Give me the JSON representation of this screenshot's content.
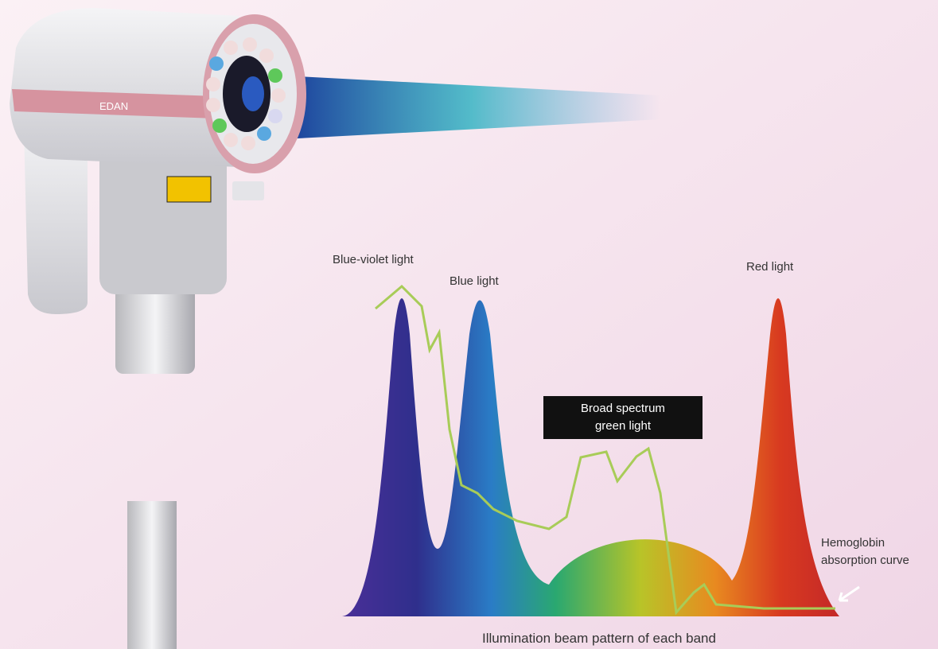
{
  "device": {
    "brand": "EDAN"
  },
  "labels": {
    "blue_violet": "Blue-violet light",
    "blue": "Blue light",
    "red": "Red light",
    "green": {
      "lines": [
        "Broad spectrum",
        "green light"
      ]
    },
    "hemoglobin": {
      "lines": [
        "Hemoglobin",
        "absorption curve"
      ]
    }
  },
  "caption": "Illumination beam pattern of each band"
}
